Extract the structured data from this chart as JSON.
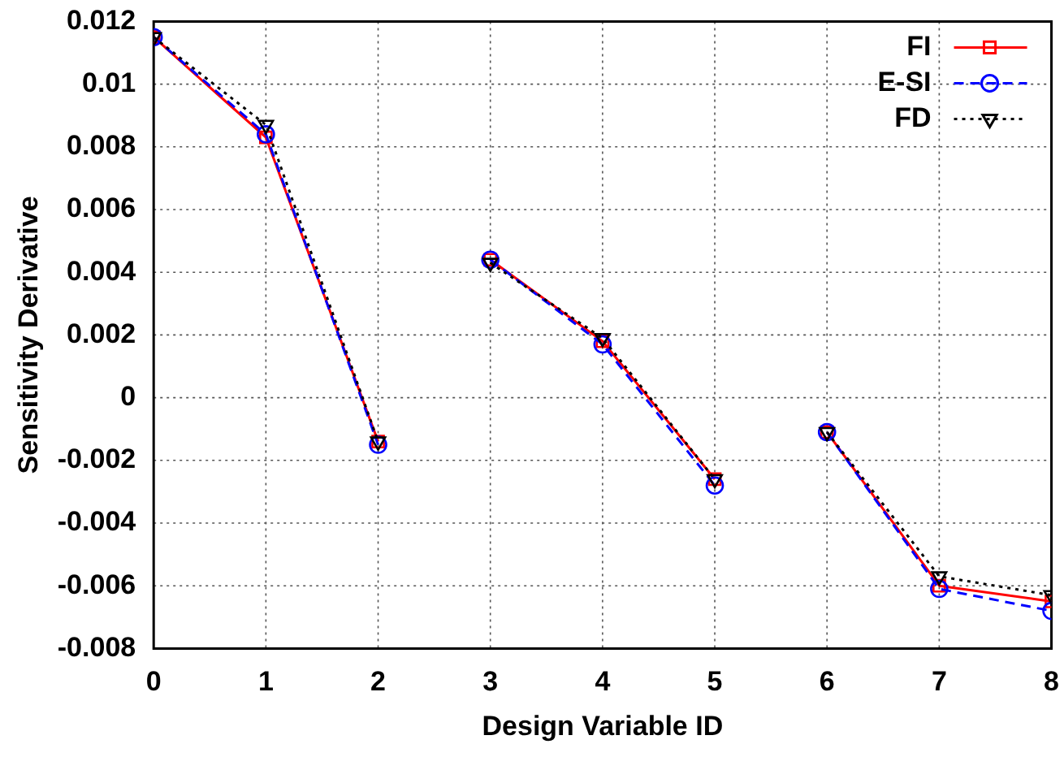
{
  "chart_data": {
    "type": "line",
    "xlabel": "Design Variable ID",
    "ylabel": "Sensitivity Derivative",
    "x": [
      0,
      1,
      2,
      2.5,
      3,
      4,
      5,
      5.5,
      6,
      7,
      8
    ],
    "series": [
      {
        "name": "FI",
        "color": "#ff0000",
        "marker": "square",
        "line_style": "solid",
        "values": [
          0.0115,
          0.0083,
          -0.0014,
          null,
          0.0044,
          0.0018,
          -0.0026,
          null,
          -0.0011,
          -0.006,
          -0.0065
        ]
      },
      {
        "name": "E-SI",
        "color": "#0000ff",
        "marker": "circle",
        "line_style": "dashed",
        "values": [
          0.0115,
          0.0084,
          -0.0015,
          null,
          0.0044,
          0.0017,
          -0.0028,
          null,
          -0.0011,
          -0.0061,
          -0.0068
        ]
      },
      {
        "name": "FD",
        "color": "#000000",
        "marker": "triangle",
        "line_style": "dotted",
        "values": [
          0.0115,
          0.0087,
          -0.0014,
          null,
          0.0043,
          0.0019,
          -0.0026,
          null,
          -0.0011,
          -0.0057,
          -0.0063
        ]
      }
    ],
    "xlim": [
      0,
      8
    ],
    "xticks": [
      0,
      1,
      2,
      3,
      4,
      5,
      6,
      7,
      8
    ],
    "ylim": [
      -0.008,
      0.012
    ],
    "yticks": [
      -0.008,
      -0.006,
      -0.004,
      -0.002,
      0,
      0.002,
      0.004,
      0.006,
      0.008,
      0.01,
      0.012
    ],
    "grid": true,
    "legend": "top right"
  }
}
